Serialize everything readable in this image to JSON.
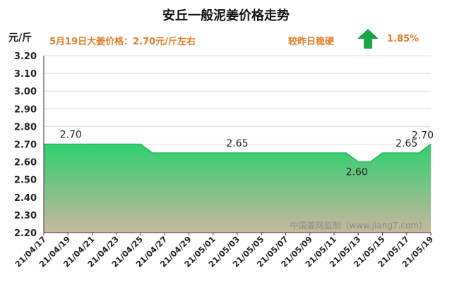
{
  "title": "安丘一般泥姜价格走势",
  "unit_label": "元/斤",
  "headline": "5月19日大姜价格：2.70元/斤左右",
  "compare_label": "较昨日稳硬",
  "change_pct": "1.85%",
  "watermark": "中国姜网监制（www.jiang7.com）",
  "colors": {
    "area_top": "#2fcf6f",
    "area_bottom": "#c8b79e",
    "line": "#22b85a",
    "arrow": "#1aa64a",
    "accent_text": "#e07d2a"
  },
  "arrow_icon": "up-arrow-icon",
  "chart_data": {
    "type": "area",
    "x": [
      "21/04/17",
      "21/04/18",
      "21/04/19",
      "21/04/20",
      "21/04/21",
      "21/04/22",
      "21/04/23",
      "21/04/24",
      "21/04/25",
      "21/04/26",
      "21/04/27",
      "21/04/28",
      "21/04/29",
      "21/04/30",
      "21/05/01",
      "21/05/02",
      "21/05/03",
      "21/05/04",
      "21/05/05",
      "21/05/06",
      "21/05/07",
      "21/05/08",
      "21/05/09",
      "21/05/10",
      "21/05/11",
      "21/05/12",
      "21/05/13",
      "21/05/14",
      "21/05/15",
      "21/05/16",
      "21/05/17",
      "21/05/18",
      "21/05/19"
    ],
    "x_tick_labels": [
      "21/04/17",
      "21/04/19",
      "21/04/21",
      "21/04/23",
      "21/04/25",
      "21/04/27",
      "21/04/29",
      "21/05/01",
      "21/05/03",
      "21/05/05",
      "21/05/07",
      "21/05/09",
      "21/05/11",
      "21/05/13",
      "21/05/15",
      "21/05/17",
      "21/05/19"
    ],
    "values": [
      2.7,
      2.7,
      2.7,
      2.7,
      2.7,
      2.7,
      2.7,
      2.7,
      2.7,
      2.65,
      2.65,
      2.65,
      2.65,
      2.65,
      2.65,
      2.65,
      2.65,
      2.65,
      2.65,
      2.65,
      2.65,
      2.65,
      2.65,
      2.65,
      2.65,
      2.65,
      2.6,
      2.6,
      2.65,
      2.65,
      2.65,
      2.65,
      2.7
    ],
    "y_ticks": [
      "3.20",
      "3.10",
      "3.00",
      "2.90",
      "2.80",
      "2.70",
      "2.60",
      "2.50",
      "2.40",
      "2.30",
      "2.20"
    ],
    "ylim": [
      2.2,
      3.2
    ],
    "grid": true,
    "annotations": [
      {
        "index": 2,
        "text": "2.70"
      },
      {
        "index": 16,
        "text": "2.65"
      },
      {
        "index": 26,
        "text": "2.60"
      },
      {
        "index": 30,
        "text": "2.65"
      },
      {
        "index": 32,
        "text": "2.70"
      }
    ]
  }
}
